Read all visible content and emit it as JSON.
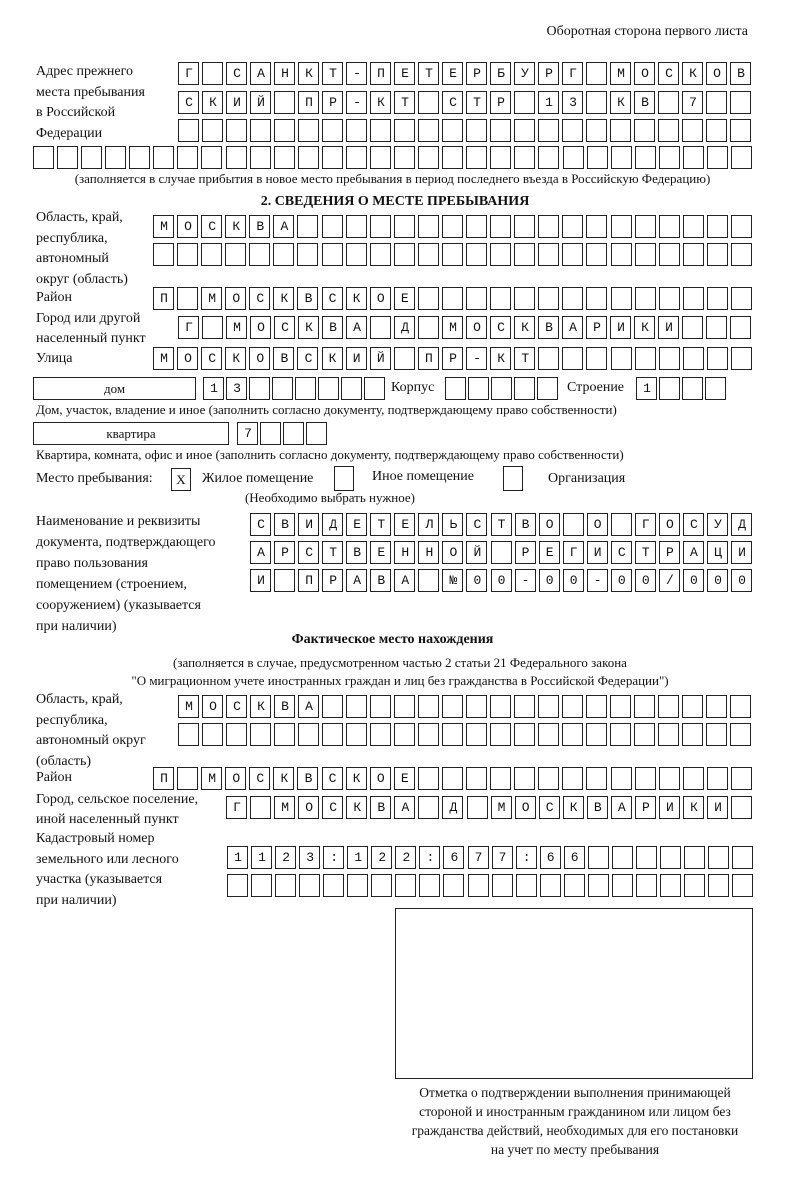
{
  "header": {
    "side_note": "Оборотная сторона первого листа"
  },
  "previous_address": {
    "label_lines": [
      "Адрес прежнего",
      "места пребывания",
      "в Российской",
      "Федерации"
    ],
    "rows": [
      "Г САНКТ-ПЕТЕРБУРГ МОСКОВ",
      "СКИЙ ПР-КТ СТР 13 КВ 7",
      "",
      ""
    ],
    "note": "(заполняется в случае прибытия в новое место пребывания в период последнего въезда в Российскую Федерацию)"
  },
  "section2": {
    "title": "2. СВЕДЕНИЯ О МЕСТЕ ПРЕБЫВАНИЯ",
    "region_label_lines": [
      "Область, край,",
      "республика,",
      "автономный",
      "округ (область)"
    ],
    "region_rows": [
      "МОСКВА",
      ""
    ],
    "district_label": "Район",
    "district": "П МОСКВСКОЕ",
    "city_label_lines": [
      "Город или другой",
      "населенный пункт"
    ],
    "city": "Г МОСКВА Д МОСКВАРИКИ",
    "street_label": "Улица",
    "street": "МОСКОВСКИЙ ПР-КТ",
    "house_type": "дом",
    "house": "13",
    "korpus_label": "Корпус",
    "korpus": "",
    "building_label": "Строение",
    "building": "1",
    "house_note": "Дом, участок, владение и иное (заполнить согласно документу, подтверждающему право собственности)",
    "apartment_type": "квартира",
    "apartment": "7",
    "apartment_note": "Квартира, комната, офис и иное (заполнить согласно документу, подтверждающему право собственности)",
    "place_label": "Место пребывания:",
    "place_options": [
      {
        "label": "Жилое помещение",
        "mark": "X"
      },
      {
        "label": "Иное помещение",
        "mark": ""
      },
      {
        "label": "Организация",
        "mark": ""
      }
    ],
    "place_note": "(Необходимо выбрать нужное)",
    "document_label_lines": [
      "Наименование и реквизиты",
      "документа, подтверждающего",
      "право пользования",
      "помещением (строением,",
      "сооружением) (указывается",
      "при наличии)"
    ],
    "document_rows": [
      "СВИДЕТЕЛЬСТВО О ГОСУД",
      "АРСТВЕННОЙ РЕГИСТРАЦИ",
      "И ПРАВА №00-00-00/000"
    ]
  },
  "actual": {
    "title": "Фактическое место нахождения",
    "note_lines": [
      "(заполняется в случае, предусмотренном частью 2 статьи 21 Федерального закона",
      "\"О миграционном учете иностранных граждан и лиц без гражданства в Российской Федерации\")"
    ],
    "region_label_lines": [
      "Область, край,",
      "республика,",
      "автономный округ",
      "(область)"
    ],
    "region_rows": [
      "МОСКВА",
      ""
    ],
    "district_label": "Район",
    "district": "П МОСКВСКОЕ",
    "city_label_lines": [
      "Город, сельское поселение,",
      "иной населенный пункт"
    ],
    "city": "Г МОСКВА Д МОСКВАРИКИ",
    "cadastral_label_lines": [
      "Кадастровый номер",
      "земельного или лесного",
      "участка (указывается",
      "при наличии)"
    ],
    "cadastral_rows": [
      "1123:122:677:66",
      ""
    ]
  },
  "confirmation": {
    "caption_lines": [
      "Отметка о подтверждении выполнения принимающей",
      "стороной и иностранным гражданином или лицом без",
      "гражданства действий, необходимых для его постановки",
      "на учет по месту пребывания"
    ]
  }
}
